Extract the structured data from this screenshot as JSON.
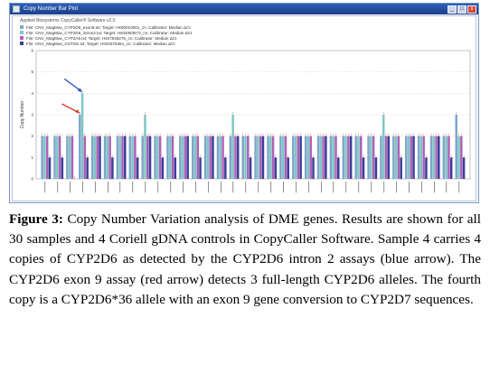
{
  "window": {
    "title": "Copy Number Bar Plot",
    "controls": [
      "_",
      "□",
      "x"
    ]
  },
  "software_title": "Applied Biosystems CopyCaller® Software v2.0",
  "legend": [
    {
      "label": "File: CNV_MagMax_CYP2D6_exon9.txt; Target: Hs00010001_cn; Calibrator: Median ΔCt",
      "color": "#7fa6c9"
    },
    {
      "label": "File: CNV_MagMax_CYP2D6_intron2.txt; Target: Hs04083572_cn; Calibrator: Median ΔCt",
      "color": "#7ec7c6"
    },
    {
      "label": "File: CNV_MagMax_CYP2A6.txt; Target: Hs07545275_cn; Calibrator: Median ΔCt",
      "color": "#b060b8"
    },
    {
      "label": "File: CNV_MagMax_GSTM1.txt; Target: Hs02575461_cn; Calibrator: Median ΔCt",
      "color": "#3a3f9a"
    }
  ],
  "chart_data": {
    "type": "bar",
    "ylabel": "Copy Number",
    "ylim": [
      0,
      6
    ],
    "yticks": [
      0,
      1,
      2,
      3,
      4,
      5,
      6
    ],
    "grid": true,
    "series": [
      {
        "color": "#7fa6c9",
        "values": [
          2,
          2,
          2,
          3,
          2,
          2,
          2,
          2,
          2,
          2,
          2,
          2,
          2,
          2,
          2,
          2,
          2,
          2,
          2,
          2,
          2,
          2,
          2,
          2,
          2,
          2,
          2,
          2,
          2,
          2,
          2,
          2,
          2,
          3
        ]
      },
      {
        "color": "#7ec7c6",
        "values": [
          2,
          2,
          2,
          4,
          2,
          2,
          2,
          2,
          3,
          2,
          2,
          2,
          2,
          2,
          2,
          3,
          2,
          2,
          2,
          2,
          2,
          2,
          2,
          2,
          2,
          2,
          2,
          3,
          2,
          2,
          2,
          2,
          2,
          2
        ]
      },
      {
        "color": "#b060b8",
        "values": [
          2,
          2,
          2,
          2,
          2,
          2,
          2,
          2,
          2,
          2,
          2,
          2,
          2,
          2,
          2,
          2,
          2,
          2,
          2,
          2,
          2,
          2,
          2,
          2,
          2,
          2,
          2,
          2,
          2,
          2,
          2,
          2,
          2,
          2
        ]
      },
      {
        "color": "#3a3f9a",
        "values": [
          1,
          1,
          0,
          1,
          2,
          1,
          2,
          1,
          2,
          1,
          1,
          2,
          1,
          2,
          1,
          2,
          1,
          2,
          1,
          1,
          2,
          1,
          2,
          1,
          2,
          1,
          1,
          2,
          1,
          2,
          1,
          2,
          1,
          1
        ]
      }
    ],
    "annotations": [
      {
        "label": "blue arrow",
        "color": "#3456b8"
      },
      {
        "label": "red arrow",
        "color": "#d2412a"
      }
    ]
  },
  "caption": {
    "label": "Figure 3:",
    "text": " Copy Number Variation analysis of DME genes. Results are shown for all 30 samples and 4 Coriell gDNA controls in CopyCaller Software. Sample 4 carries 4 copies of CYP2D6 as detected by the CYP2D6 intron 2 assays (blue arrow). The CYP2D6 exon 9 assay (red arrow) detects 3 full-length CYP2D6 alleles. The fourth copy is a CYP2D6*36 allele with an exon 9 gene conversion to CYP2D7 sequences."
  }
}
